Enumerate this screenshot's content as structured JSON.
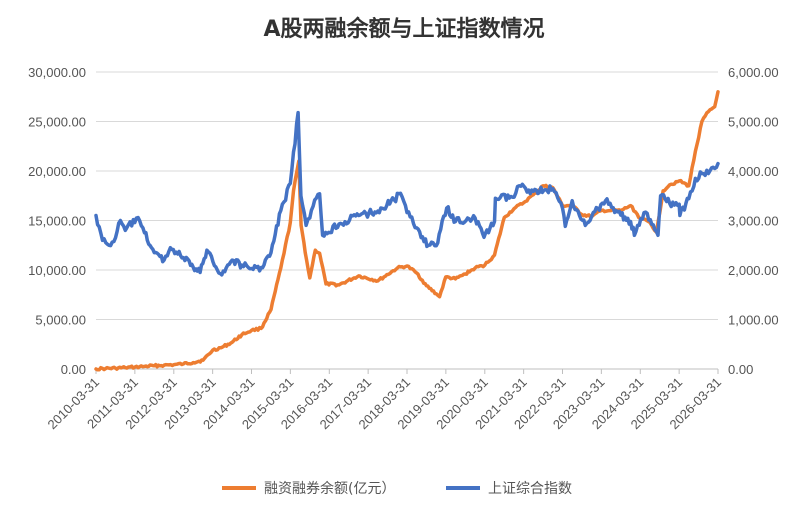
{
  "chart_data": {
    "type": "line",
    "title": "A股两融余额与上证指数情况",
    "y_left": {
      "min": 0,
      "max": 30000,
      "step": 5000,
      "tick_labels": [
        "0.00",
        "5,000.00",
        "10,000.00",
        "15,000.00",
        "20,000.00",
        "25,000.00",
        "30,000.00"
      ]
    },
    "y_right": {
      "min": 0,
      "max": 6000,
      "step": 1000,
      "tick_labels": [
        "0.00",
        "1,000.00",
        "2,000.00",
        "3,000.00",
        "4,000.00",
        "5,000.00",
        "6,000.00"
      ]
    },
    "x_tick_labels": [
      "2010-03-31",
      "2011-03-31",
      "2012-03-31",
      "2013-03-31",
      "2014-03-31",
      "2015-03-31",
      "2016-03-31",
      "2017-03-31",
      "2018-03-31",
      "2019-03-31",
      "2020-03-31",
      "2021-03-31",
      "2022-03-31",
      "2023-03-31",
      "2024-03-31",
      "2025-03-31",
      "2026-03-31"
    ],
    "grid": "horizontal",
    "legend_position": "bottom",
    "series": [
      {
        "name": "融资融券余额(亿元）",
        "axis": "left",
        "color": "#ED7D31",
        "points": [
          [
            "2010-03-31",
            0
          ],
          [
            "2010-06-30",
            50
          ],
          [
            "2010-09-30",
            80
          ],
          [
            "2010-12-31",
            130
          ],
          [
            "2011-03-31",
            190
          ],
          [
            "2011-06-30",
            260
          ],
          [
            "2011-09-30",
            330
          ],
          [
            "2011-12-31",
            380
          ],
          [
            "2012-03-31",
            430
          ],
          [
            "2012-06-30",
            520
          ],
          [
            "2012-09-30",
            650
          ],
          [
            "2012-12-31",
            890
          ],
          [
            "2013-03-31",
            1900
          ],
          [
            "2013-06-30",
            2200
          ],
          [
            "2013-09-30",
            2700
          ],
          [
            "2013-12-31",
            3470
          ],
          [
            "2014-03-31",
            3900
          ],
          [
            "2014-06-30",
            4100
          ],
          [
            "2014-09-30",
            6000
          ],
          [
            "2014-12-31",
            10200
          ],
          [
            "2015-03-31",
            14800
          ],
          [
            "2015-04-30",
            18000
          ],
          [
            "2015-06-18",
            21000
          ],
          [
            "2015-07-10",
            14500
          ],
          [
            "2015-08-31",
            11000
          ],
          [
            "2015-09-30",
            9200
          ],
          [
            "2015-11-20",
            12000
          ],
          [
            "2015-12-31",
            11700
          ],
          [
            "2016-02-29",
            8600
          ],
          [
            "2016-06-30",
            8500
          ],
          [
            "2016-12-31",
            9400
          ],
          [
            "2017-06-30",
            8900
          ],
          [
            "2017-12-31",
            10200
          ],
          [
            "2018-03-31",
            10400
          ],
          [
            "2018-06-30",
            9700
          ],
          [
            "2018-09-30",
            8400
          ],
          [
            "2018-12-31",
            7600
          ],
          [
            "2019-01-31",
            7300
          ],
          [
            "2019-03-31",
            9300
          ],
          [
            "2019-06-30",
            9100
          ],
          [
            "2019-09-30",
            9600
          ],
          [
            "2019-12-31",
            10200
          ],
          [
            "2020-03-31",
            10500
          ],
          [
            "2020-06-30",
            11500
          ],
          [
            "2020-09-30",
            15300
          ],
          [
            "2020-12-31",
            16200
          ],
          [
            "2021-03-31",
            16800
          ],
          [
            "2021-06-30",
            17600
          ],
          [
            "2021-09-30",
            18500
          ],
          [
            "2021-12-31",
            18300
          ],
          [
            "2022-03-31",
            16500
          ],
          [
            "2022-06-30",
            16500
          ],
          [
            "2022-09-30",
            15600
          ],
          [
            "2022-12-31",
            15400
          ],
          [
            "2023-03-31",
            16000
          ],
          [
            "2023-06-30",
            16000
          ],
          [
            "2023-09-30",
            16000
          ],
          [
            "2023-12-31",
            16500
          ],
          [
            "2024-03-31",
            15200
          ],
          [
            "2024-06-30",
            14800
          ],
          [
            "2024-08-31",
            13800
          ],
          [
            "2024-10-31",
            18000
          ],
          [
            "2024-12-31",
            18600
          ],
          [
            "2025-03-31",
            19000
          ],
          [
            "2025-06-30",
            18500
          ],
          [
            "2025-08-31",
            22000
          ],
          [
            "2025-10-31",
            25000
          ],
          [
            "2025-12-31",
            26000
          ],
          [
            "2026-02-28",
            26500
          ],
          [
            "2026-03-31",
            28000
          ]
        ]
      },
      {
        "name": "上证综合指数",
        "axis": "right",
        "color": "#4472C4",
        "points": [
          [
            "2010-03-31",
            3100
          ],
          [
            "2010-05-31",
            2600
          ],
          [
            "2010-07-31",
            2500
          ],
          [
            "2010-09-30",
            2650
          ],
          [
            "2010-11-15",
            3000
          ],
          [
            "2010-12-31",
            2800
          ],
          [
            "2011-04-15",
            3050
          ],
          [
            "2011-06-30",
            2750
          ],
          [
            "2011-09-30",
            2350
          ],
          [
            "2011-12-31",
            2200
          ],
          [
            "2012-02-28",
            2450
          ],
          [
            "2012-06-30",
            2250
          ],
          [
            "2012-09-30",
            2050
          ],
          [
            "2012-12-03",
            1950
          ],
          [
            "2013-02-05",
            2400
          ],
          [
            "2013-06-25",
            1900
          ],
          [
            "2013-09-30",
            2200
          ],
          [
            "2013-12-31",
            2100
          ],
          [
            "2014-03-31",
            2030
          ],
          [
            "2014-06-30",
            2050
          ],
          [
            "2014-09-30",
            2350
          ],
          [
            "2014-12-31",
            3200
          ],
          [
            "2015-03-31",
            3750
          ],
          [
            "2015-06-12",
            5180
          ],
          [
            "2015-07-08",
            3500
          ],
          [
            "2015-08-26",
            2900
          ],
          [
            "2015-09-30",
            3050
          ],
          [
            "2015-11-30",
            3450
          ],
          [
            "2015-12-31",
            3540
          ],
          [
            "2016-01-28",
            2700
          ],
          [
            "2016-06-30",
            2930
          ],
          [
            "2016-12-31",
            3100
          ],
          [
            "2017-06-30",
            3190
          ],
          [
            "2017-11-30",
            3420
          ],
          [
            "2018-01-29",
            3550
          ],
          [
            "2018-03-31",
            3160
          ],
          [
            "2018-06-30",
            2850
          ],
          [
            "2018-10-18",
            2500
          ],
          [
            "2018-12-31",
            2490
          ],
          [
            "2019-04-08",
            3250
          ],
          [
            "2019-06-30",
            2980
          ],
          [
            "2019-12-31",
            3050
          ],
          [
            "2020-03-23",
            2660
          ],
          [
            "2020-06-30",
            2980
          ],
          [
            "2020-07-09",
            3450
          ],
          [
            "2020-12-31",
            3470
          ],
          [
            "2021-02-18",
            3700
          ],
          [
            "2021-06-30",
            3590
          ],
          [
            "2021-12-31",
            3640
          ],
          [
            "2022-03-31",
            3250
          ],
          [
            "2022-04-26",
            2880
          ],
          [
            "2022-06-30",
            3400
          ],
          [
            "2022-10-31",
            2900
          ],
          [
            "2022-12-31",
            3090
          ],
          [
            "2023-05-09",
            3400
          ],
          [
            "2023-09-30",
            3110
          ],
          [
            "2023-12-31",
            2980
          ],
          [
            "2024-02-05",
            2700
          ],
          [
            "2024-05-20",
            3170
          ],
          [
            "2024-09-13",
            2700
          ],
          [
            "2024-10-08",
            3500
          ],
          [
            "2024-12-31",
            3350
          ],
          [
            "2025-03-31",
            3330
          ],
          [
            "2025-04-07",
            3100
          ],
          [
            "2025-06-30",
            3440
          ],
          [
            "2025-08-31",
            3850
          ],
          [
            "2025-10-31",
            3950
          ],
          [
            "2025-12-31",
            3950
          ],
          [
            "2026-02-28",
            4050
          ],
          [
            "2026-03-31",
            4150
          ]
        ]
      }
    ]
  }
}
